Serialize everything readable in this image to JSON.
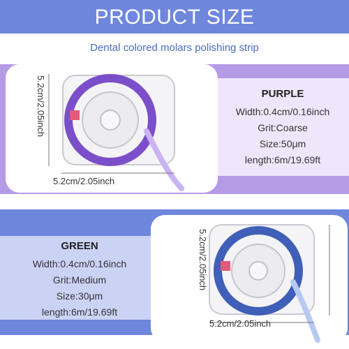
{
  "header": {
    "title": "PRODUCT SIZE"
  },
  "subtitle": "Dental colored molars polishing strip",
  "products": [
    {
      "color_name": "PURPLE",
      "width": "Width:0.4cm/0.16inch",
      "grit": "Grit:Coarse",
      "size": "Size:50μm",
      "length": "length:6m/19.69ft",
      "dim_vertical": "5.2cm/2.05inch",
      "dim_horizontal": "5.2cm/2.05inch",
      "strip_color": "#7b4fc9"
    },
    {
      "color_name": "GREEN",
      "width": "Width:0.4cm/0.16inch",
      "grit": "Grit:Medium",
      "size": "Size:30μm",
      "length": "length:6m/19.69ft",
      "dim_vertical": "5.2cm/2.05inch",
      "dim_horizontal": "5.2cm/2.05inch",
      "strip_color": "#3f5fb8"
    }
  ],
  "colors": {
    "header_bg": "#6f86dd",
    "purple_band": "#b59ae6",
    "blue_band": "#6f86dd"
  }
}
